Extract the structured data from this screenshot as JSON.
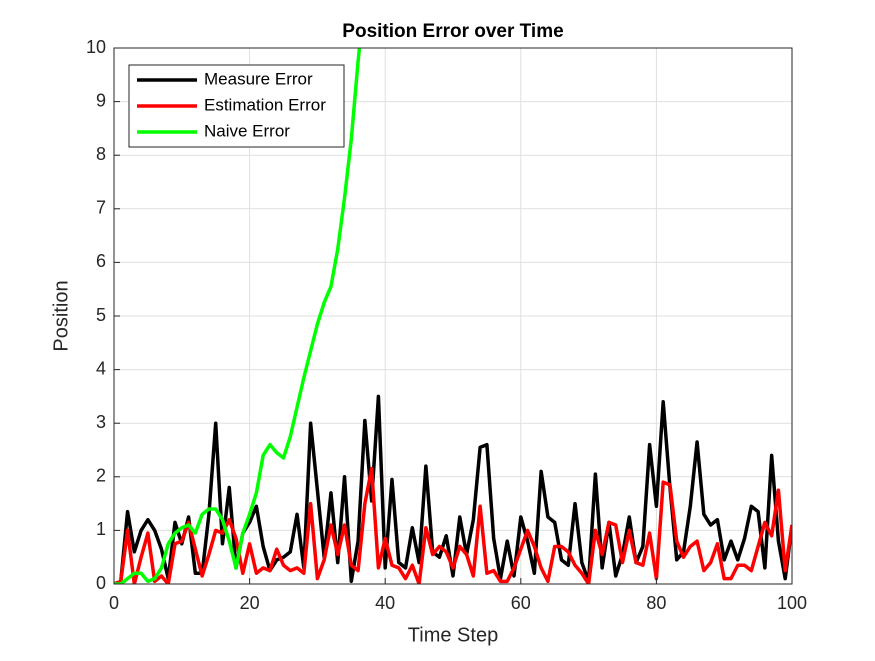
{
  "chart_data": {
    "type": "line",
    "title": "Position Error over Time",
    "x_label": "Time Step",
    "y_label": "Position",
    "x": [
      0,
      1,
      2,
      3,
      4,
      5,
      6,
      7,
      8,
      9,
      10,
      11,
      12,
      13,
      14,
      15,
      16,
      17,
      18,
      19,
      20,
      21,
      22,
      23,
      24,
      25,
      26,
      27,
      28,
      29,
      30,
      31,
      32,
      33,
      34,
      35,
      36,
      37,
      38,
      39,
      40,
      41,
      42,
      43,
      44,
      45,
      46,
      47,
      48,
      49,
      50,
      51,
      52,
      53,
      54,
      55,
      56,
      57,
      58,
      59,
      60,
      61,
      62,
      63,
      64,
      65,
      66,
      67,
      68,
      69,
      70,
      71,
      72,
      73,
      74,
      75,
      76,
      77,
      78,
      79,
      80,
      81,
      82,
      83,
      84,
      85,
      86,
      87,
      88,
      89,
      90,
      91,
      92,
      93,
      94,
      95,
      96,
      97,
      98,
      99,
      100
    ],
    "series": [
      {
        "name": "Measure Error",
        "color": "#000000",
        "values": [
          0,
          0.05,
          1.35,
          0.6,
          1.0,
          1.2,
          1.0,
          0.65,
          0.1,
          1.15,
          0.75,
          1.25,
          0.2,
          0.2,
          1.3,
          3.0,
          0.75,
          1.8,
          0.3,
          0.95,
          1.15,
          1.45,
          0.7,
          0.25,
          0.45,
          0.5,
          0.6,
          1.3,
          0.3,
          3.0,
          1.75,
          0.5,
          1.7,
          0.4,
          2.0,
          0.05,
          0.8,
          3.05,
          1.55,
          3.5,
          0.3,
          1.95,
          0.4,
          0.3,
          1.05,
          0.4,
          2.2,
          0.6,
          0.5,
          0.9,
          0.15,
          1.25,
          0.55,
          1.2,
          2.55,
          2.6,
          0.85,
          0.1,
          0.8,
          0.15,
          1.25,
          0.8,
          0.2,
          2.1,
          1.25,
          1.15,
          0.45,
          0.35,
          1.5,
          0.4,
          0.05,
          2.05,
          0.3,
          1.15,
          0.15,
          0.55,
          1.25,
          0.4,
          0.7,
          2.6,
          1.45,
          3.4,
          1.8,
          0.45,
          0.6,
          1.45,
          2.65,
          1.3,
          1.1,
          1.2,
          0.45,
          0.8,
          0.45,
          0.85,
          1.45,
          1.35,
          0.3,
          2.4,
          0.8,
          0.1,
          1.1
        ]
      },
      {
        "name": "Estimation Error",
        "color": "#ff0000",
        "values": [
          0,
          0.05,
          1.0,
          0.0,
          0.5,
          0.95,
          0.05,
          0.15,
          0.0,
          0.75,
          0.8,
          1.15,
          0.65,
          0.15,
          0.55,
          1.0,
          0.95,
          1.2,
          0.85,
          0.2,
          0.75,
          0.2,
          0.3,
          0.25,
          0.65,
          0.35,
          0.25,
          0.3,
          0.2,
          1.5,
          0.1,
          0.45,
          1.1,
          0.55,
          1.1,
          0.35,
          0.25,
          1.5,
          2.15,
          0.3,
          0.85,
          0.35,
          0.3,
          0.1,
          0.35,
          0.0,
          1.05,
          0.55,
          0.7,
          0.6,
          0.3,
          0.7,
          0.55,
          0.15,
          1.45,
          0.2,
          0.25,
          0.05,
          0.05,
          0.3,
          0.65,
          1.0,
          0.7,
          0.3,
          0.05,
          0.7,
          0.7,
          0.6,
          0.35,
          0.2,
          0.0,
          1.0,
          0.55,
          1.15,
          1.1,
          0.4,
          1.0,
          0.4,
          0.35,
          0.95,
          0.1,
          1.9,
          1.85,
          0.8,
          0.5,
          0.7,
          0.8,
          0.25,
          0.4,
          0.75,
          0.1,
          0.1,
          0.35,
          0.35,
          0.25,
          0.7,
          1.15,
          0.9,
          1.75,
          0.25,
          1.1
        ]
      },
      {
        "name": "Naive Error",
        "color": "#00ff00",
        "values": [
          0,
          0.0,
          0.1,
          0.2,
          0.2,
          0.05,
          0.1,
          0.3,
          0.75,
          0.95,
          1.05,
          1.1,
          0.95,
          1.3,
          1.4,
          1.4,
          1.2,
          0.8,
          0.3,
          0.95,
          1.3,
          1.7,
          2.4,
          2.6,
          2.45,
          2.35,
          2.75,
          3.3,
          3.85,
          4.35,
          4.85,
          5.25,
          5.55,
          6.25,
          7.2,
          8.3,
          9.75,
          11.0,
          null,
          null,
          null,
          null,
          null,
          null,
          null,
          null,
          null,
          null,
          null,
          null,
          null,
          null,
          null,
          null,
          null,
          null,
          null,
          null,
          null,
          null,
          null,
          null,
          null,
          null,
          null,
          null,
          null,
          null,
          null,
          null,
          null,
          null,
          null,
          null,
          null,
          null,
          null,
          null,
          null,
          null,
          null,
          null,
          null,
          null,
          null,
          null,
          null,
          null,
          null,
          null,
          null,
          null,
          null,
          null,
          null,
          null,
          null,
          null,
          null,
          null,
          null
        ]
      }
    ],
    "xlim": [
      0,
      100
    ],
    "xticks": [
      0,
      20,
      40,
      60,
      80,
      100
    ],
    "ylim": [
      0,
      10
    ],
    "yticks": [
      0,
      1,
      2,
      3,
      4,
      5,
      6,
      7,
      8,
      9,
      10
    ],
    "grid": true,
    "legend_position": "upper-left"
  }
}
